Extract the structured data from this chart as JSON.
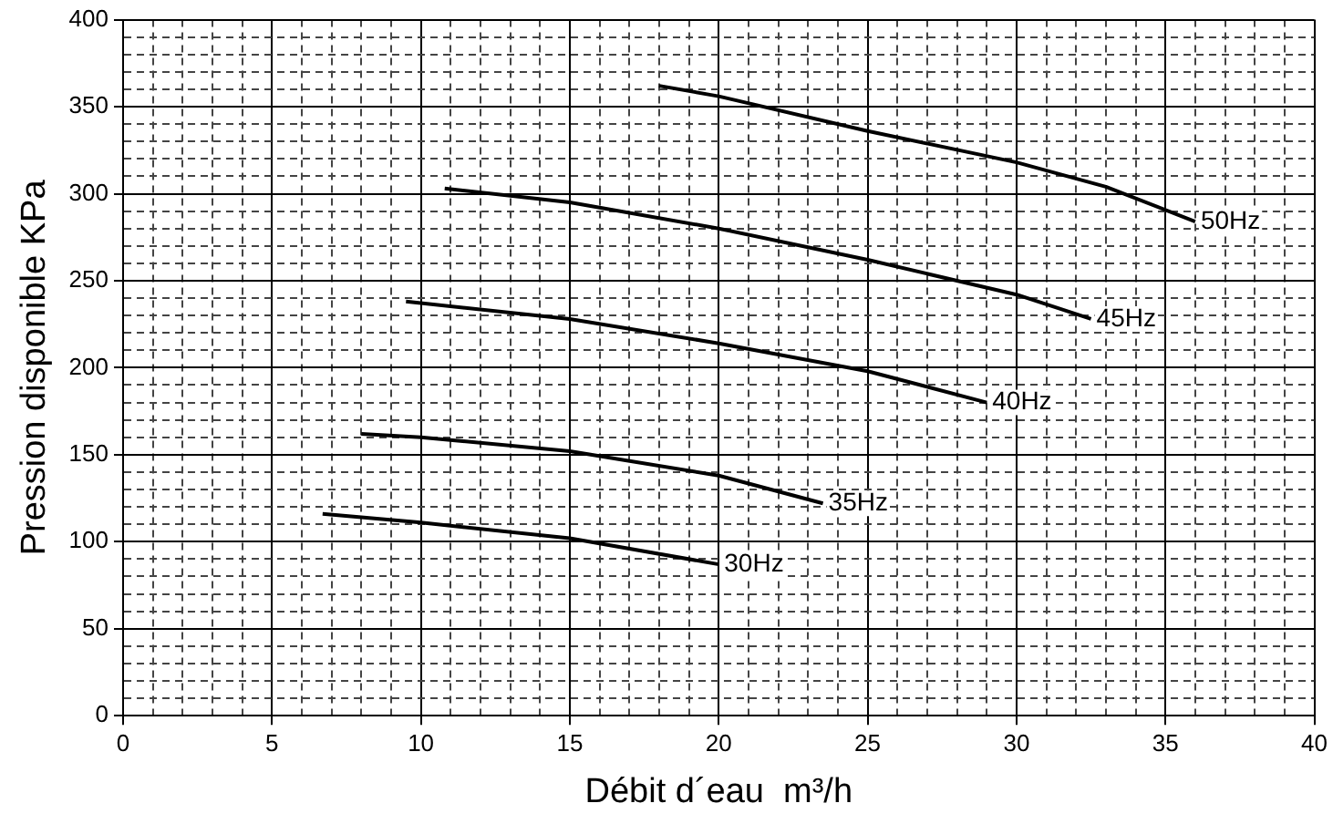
{
  "chart_data": {
    "type": "line",
    "xlabel": "Débit d´eau  m³/h",
    "ylabel": "Pression disponible KPa",
    "xlim": [
      0,
      40
    ],
    "ylim": [
      0,
      400
    ],
    "xticks": [
      0,
      {
        "value": 1,
        "label": null
      },
      {
        "value": 2,
        "label": null
      },
      {
        "value": 3,
        "label": null
      },
      {
        "value": 4,
        "label": null
      },
      5,
      {
        "value": 6,
        "label": null
      },
      {
        "value": 7,
        "label": null
      },
      {
        "value": 8,
        "label": null
      },
      {
        "value": 9,
        "label": null
      },
      10,
      {
        "value": 11,
        "label": null
      },
      {
        "value": 12,
        "label": null
      },
      {
        "value": 13,
        "label": null
      },
      {
        "value": 14,
        "label": null
      },
      15,
      {
        "value": 16,
        "label": null
      },
      {
        "value": 17,
        "label": null
      },
      {
        "value": 18,
        "label": null
      },
      {
        "value": 19,
        "label": null
      },
      20,
      {
        "value": 21,
        "label": null
      },
      {
        "value": 22,
        "label": null
      },
      {
        "value": 23,
        "label": null
      },
      {
        "value": 24,
        "label": null
      },
      25,
      {
        "value": 26,
        "label": null
      },
      {
        "value": 27,
        "label": null
      },
      {
        "value": 28,
        "label": null
      },
      {
        "value": 29,
        "label": null
      },
      30,
      {
        "value": 31,
        "label": null
      },
      {
        "value": 32,
        "label": null
      },
      {
        "value": 33,
        "label": null
      },
      {
        "value": 34,
        "label": null
      },
      35,
      {
        "value": 36,
        "label": null
      },
      {
        "value": 37,
        "label": null
      },
      {
        "value": 38,
        "label": null
      },
      {
        "value": 39,
        "label": null
      },
      40
    ],
    "yticks": [
      0,
      {
        "value": 10,
        "label": null
      },
      {
        "value": 20,
        "label": null
      },
      {
        "value": 30,
        "label": null
      },
      {
        "value": 40,
        "label": null
      },
      50,
      {
        "value": 60,
        "label": null
      },
      {
        "value": 70,
        "label": null
      },
      {
        "value": 80,
        "label": null
      },
      {
        "value": 90,
        "label": null
      },
      100,
      {
        "value": 110,
        "label": null
      },
      {
        "value": 120,
        "label": null
      },
      {
        "value": 130,
        "label": null
      },
      {
        "value": 140,
        "label": null
      },
      150,
      {
        "value": 160,
        "label": null
      },
      {
        "value": 170,
        "label": null
      },
      {
        "value": 180,
        "label": null
      },
      {
        "value": 190,
        "label": null
      },
      200,
      {
        "value": 210,
        "label": null
      },
      {
        "value": 220,
        "label": null
      },
      {
        "value": 230,
        "label": null
      },
      {
        "value": 240,
        "label": null
      },
      250,
      {
        "value": 260,
        "label": null
      },
      {
        "value": 270,
        "label": null
      },
      {
        "value": 280,
        "label": null
      },
      {
        "value": 290,
        "label": null
      },
      300,
      {
        "value": 310,
        "label": null
      },
      {
        "value": 320,
        "label": null
      },
      {
        "value": 330,
        "label": null
      },
      {
        "value": 340,
        "label": null
      },
      350,
      {
        "value": 360,
        "label": null
      },
      {
        "value": 370,
        "label": null
      },
      {
        "value": 380,
        "label": null
      },
      {
        "value": 390,
        "label": null
      },
      400
    ],
    "grid": true,
    "marker": "none",
    "line_style": "solid",
    "series": [
      {
        "name": "50Hz",
        "color": "#000000",
        "x": [
          18,
          20,
          25,
          30,
          33,
          36
        ],
        "values": [
          362,
          356,
          336,
          318,
          304,
          284
        ]
      },
      {
        "name": "45Hz",
        "color": "#000000",
        "x": [
          10.8,
          15,
          20,
          25,
          30,
          32.5
        ],
        "values": [
          303,
          295,
          280,
          262,
          242,
          228
        ]
      },
      {
        "name": "40Hz",
        "color": "#000000",
        "x": [
          9.5,
          15,
          20,
          25,
          29
        ],
        "values": [
          238,
          228,
          214,
          198,
          180
        ]
      },
      {
        "name": "35Hz",
        "color": "#000000",
        "x": [
          8,
          10,
          15,
          20,
          23.5
        ],
        "values": [
          162,
          160,
          152,
          138,
          122
        ]
      },
      {
        "name": "30Hz",
        "color": "#000000",
        "x": [
          6.7,
          10,
          15,
          20
        ],
        "values": [
          116,
          111,
          102,
          87
        ]
      }
    ]
  }
}
